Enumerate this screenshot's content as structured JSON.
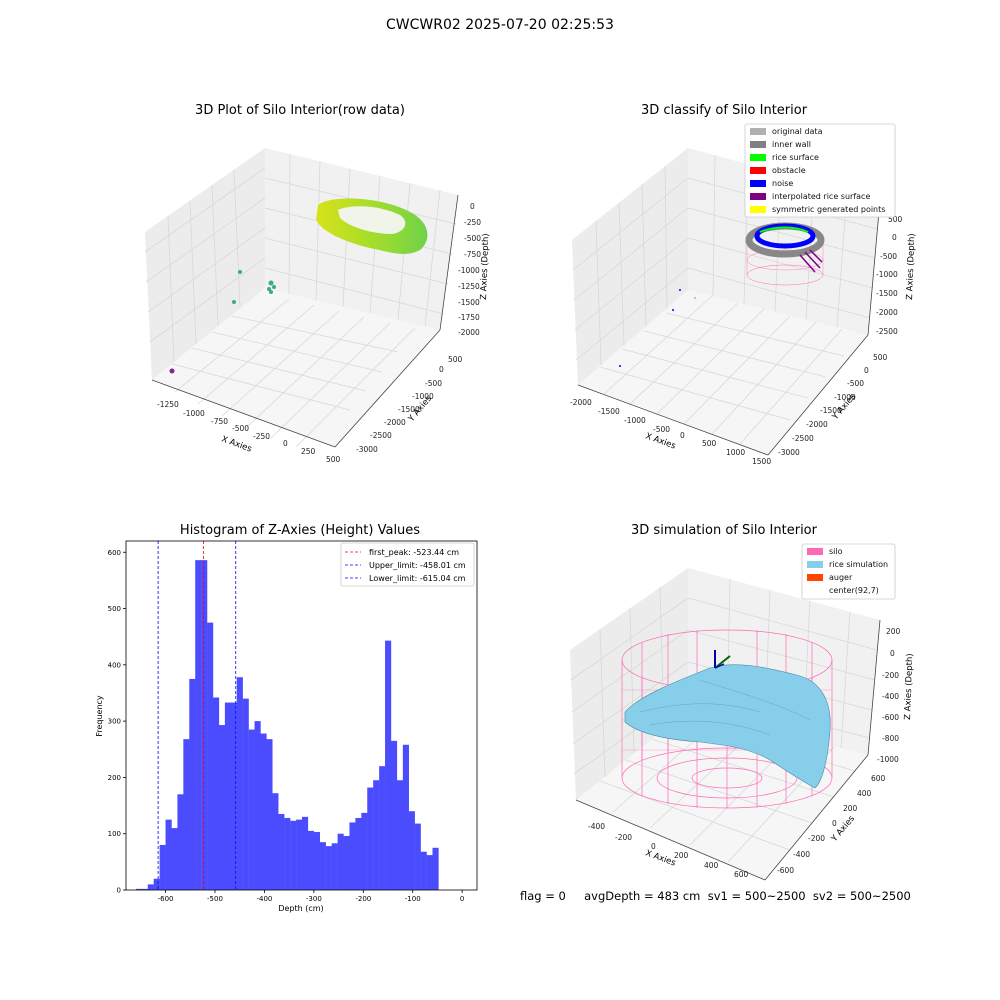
{
  "suptitle": "CWCWR02 2025-07-20 02:25:53",
  "panel1": {
    "title": "3D Plot of Silo Interior(row data)",
    "xlabel": "X Axies",
    "ylabel": "Y Axies",
    "zlabel": "Z Axies (Depth)",
    "xticks": [
      "-1250",
      "-1000",
      "-750",
      "-500",
      "-250",
      "0",
      "250",
      "500"
    ],
    "yticks": [
      "500",
      "0",
      "-500",
      "-1000",
      "-1500",
      "-2000",
      "-2500",
      "-3000"
    ],
    "zticks": [
      "0",
      "-250",
      "-500",
      "-750",
      "-1000",
      "-1250",
      "-1500",
      "-1750",
      "-2000"
    ]
  },
  "panel2": {
    "title": "3D classify of Silo Interior",
    "xlabel": "X Axies",
    "ylabel": "Y Axies",
    "zlabel": "Z Axies (Depth)",
    "xticks": [
      "-2000",
      "-1500",
      "-1000",
      "-500",
      "0",
      "500",
      "1000",
      "1500"
    ],
    "yticks": [
      "500",
      "0",
      "-500",
      "-1000",
      "-1500",
      "-2000",
      "-2500",
      "-3000"
    ],
    "zticks": [
      "500",
      "0",
      "-500",
      "-1000",
      "-1500",
      "-2000",
      "-2500"
    ],
    "legend": [
      {
        "label": "original data",
        "color": "#b0b0b0"
      },
      {
        "label": "inner wall",
        "color": "#808080"
      },
      {
        "label": "rice surface",
        "color": "#00ff00"
      },
      {
        "label": "obstacle",
        "color": "#ff0000"
      },
      {
        "label": "noise",
        "color": "#0000ff"
      },
      {
        "label": "interpolated rice surface",
        "color": "#800080"
      },
      {
        "label": "symmetric generated points",
        "color": "#ffff00"
      }
    ]
  },
  "panel4": {
    "title": "3D simulation of Silo Interior",
    "xlabel": "X Axies",
    "ylabel": "Y Axies",
    "zlabel": "Z Axies (Depth)",
    "xticks": [
      "-400",
      "-200",
      "0",
      "200",
      "400",
      "600"
    ],
    "yticks": [
      "600",
      "400",
      "200",
      "0",
      "-200",
      "-400",
      "-600"
    ],
    "zticks": [
      "200",
      "0",
      "-200",
      "-400",
      "-600",
      "-800",
      "-1000"
    ],
    "legend": [
      {
        "label": "silo",
        "color": "#ff69b4"
      },
      {
        "label": "rice simulation",
        "color": "#87ceeb"
      },
      {
        "label": "auger",
        "color": "#ff4500"
      },
      {
        "label": "center(92,7)",
        "color": ""
      }
    ]
  },
  "status_text": "flag = 0     avgDepth = 483 cm  sv1 = 500~2500  sv2 = 500~2500",
  "chart_data": {
    "type": "bar",
    "title": "Histogram of Z-Axies (Height) Values",
    "xlabel": "Depth (cm)",
    "ylabel": "Frequency",
    "xlim": [
      -680,
      30
    ],
    "ylim": [
      0,
      620
    ],
    "xticks": [
      -600,
      -500,
      -400,
      -300,
      -200,
      -100,
      0
    ],
    "yticks": [
      0,
      100,
      200,
      300,
      400,
      500,
      600
    ],
    "bar_color": "#4c4cff",
    "bin_start": -660,
    "bin_width": 12,
    "values": [
      2,
      2,
      10,
      20,
      80,
      125,
      110,
      170,
      268,
      375,
      586,
      586,
      475,
      342,
      293,
      333,
      333,
      378,
      340,
      285,
      300,
      278,
      268,
      172,
      135,
      128,
      123,
      125,
      130,
      105,
      103,
      85,
      78,
      83,
      100,
      96,
      120,
      128,
      137,
      182,
      195,
      220,
      443,
      265,
      195,
      258,
      140,
      118,
      68,
      62,
      75
    ],
    "vlines": [
      {
        "label": "first_peak: -523.44 cm",
        "x": -523.44,
        "color": "#ff0000"
      },
      {
        "label": "Upper_limit: -458.01 cm",
        "x": -458.01,
        "color": "#0000ff"
      },
      {
        "label": "Lower_limit: -615.04 cm",
        "x": -615.04,
        "color": "#0000ff"
      }
    ],
    "legend": "top-right"
  }
}
